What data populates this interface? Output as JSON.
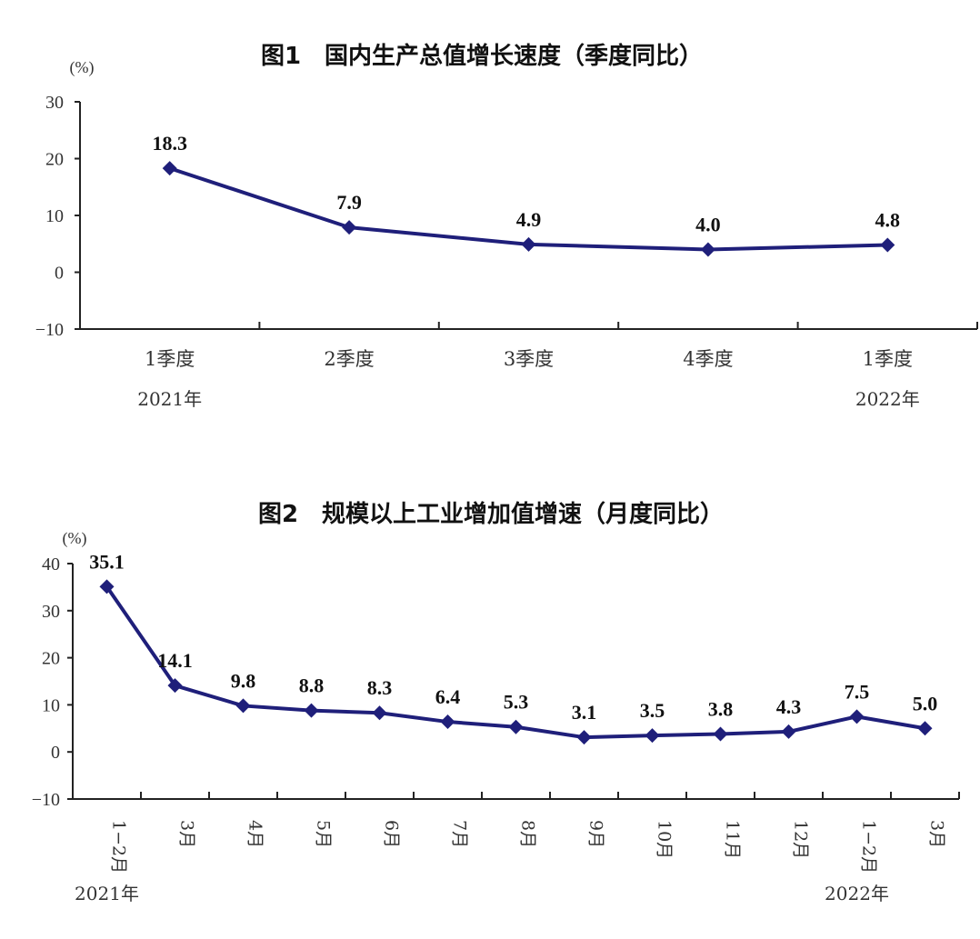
{
  "chart_data": [
    {
      "type": "line",
      "title": "图1　国内生产总值增长速度（季度同比）",
      "ylabel": "(%)",
      "ylim": [
        -10,
        30
      ],
      "yticks": [
        "30",
        "20",
        "10",
        "0",
        "−10"
      ],
      "categories": [
        "1季度",
        "2季度",
        "3季度",
        "4季度",
        "1季度"
      ],
      "year_labels": [
        {
          "text": "2021年",
          "category_index": 0
        },
        {
          "text": "2022年",
          "category_index": 4
        }
      ],
      "series": [
        {
          "values": [
            18.3,
            7.9,
            4.9,
            4.0,
            4.8
          ],
          "labels": [
            "18.3",
            "7.9",
            "4.9",
            "4.0",
            "4.8"
          ],
          "color": "#1f1f7a"
        }
      ],
      "grid": false,
      "legend": "none"
    },
    {
      "type": "line",
      "title": "图2　规模以上工业增加值增速（月度同比）",
      "ylabel": "(%)",
      "ylim": [
        -10,
        40
      ],
      "yticks": [
        "40",
        "30",
        "20",
        "10",
        "0",
        "−10"
      ],
      "categories": [
        "1−2月",
        "3月",
        "4月",
        "5月",
        "6月",
        "7月",
        "8月",
        "9月",
        "10月",
        "11月",
        "12月",
        "1−2月",
        "3月"
      ],
      "year_labels": [
        {
          "text": "2021年",
          "category_index": 0
        },
        {
          "text": "2022年",
          "category_index": 11
        }
      ],
      "series": [
        {
          "values": [
            35.1,
            14.1,
            9.8,
            8.8,
            8.3,
            6.4,
            5.3,
            3.1,
            3.5,
            3.8,
            4.3,
            7.5,
            5.0
          ],
          "labels": [
            "35.1",
            "14.1",
            "9.8",
            "8.8",
            "8.3",
            "6.4",
            "5.3",
            "3.1",
            "3.5",
            "3.8",
            "4.3",
            "7.5",
            "5.0"
          ],
          "color": "#1f1f7a"
        }
      ],
      "grid": false,
      "legend": "none"
    }
  ]
}
